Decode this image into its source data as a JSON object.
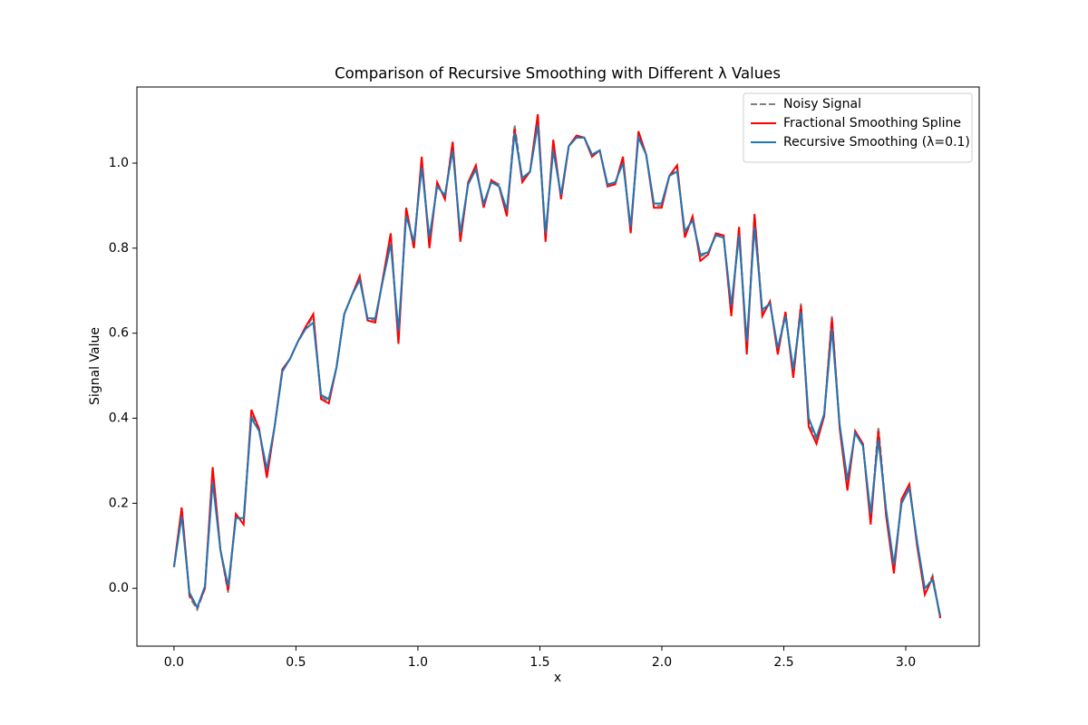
{
  "chart_data": {
    "type": "line",
    "title": "Comparison of Recursive Smoothing with Different λ Values",
    "xlabel": "x",
    "ylabel": "Signal Value",
    "x": [
      0,
      0.0317,
      0.0635,
      0.0952,
      0.1269,
      0.1587,
      0.1904,
      0.2221,
      0.2539,
      0.2856,
      0.3173,
      0.3491,
      0.3808,
      0.4125,
      0.4443,
      0.476,
      0.5077,
      0.5395,
      0.5712,
      0.6029,
      0.6347,
      0.6664,
      0.6981,
      0.7299,
      0.7616,
      0.7933,
      0.8251,
      0.8568,
      0.8885,
      0.9203,
      0.952,
      0.9837,
      1.0155,
      1.0472,
      1.0789,
      1.1107,
      1.1424,
      1.1741,
      1.2059,
      1.2376,
      1.2693,
      1.3011,
      1.3328,
      1.3645,
      1.3963,
      1.428,
      1.4597,
      1.4915,
      1.5232,
      1.5549,
      1.5867,
      1.6184,
      1.6501,
      1.6819,
      1.7136,
      1.7453,
      1.7771,
      1.8088,
      1.8405,
      1.8723,
      1.904,
      1.9357,
      1.9675,
      1.9992,
      2.0309,
      2.0627,
      2.0944,
      2.1261,
      2.1579,
      2.1896,
      2.2213,
      2.2531,
      2.2848,
      2.3165,
      2.3483,
      2.38,
      2.4117,
      2.4435,
      2.4752,
      2.5069,
      2.5387,
      2.5704,
      2.6021,
      2.6339,
      2.6656,
      2.6973,
      2.7291,
      2.7608,
      2.7925,
      2.8243,
      2.856,
      2.8877,
      2.9195,
      2.9512,
      2.9829,
      3.0147,
      3.0464,
      3.0781,
      3.1099,
      3.1416
    ],
    "series": [
      {
        "name": "Noisy Signal",
        "color": "#808080",
        "linestyle": "dashed",
        "values": [
          0.05,
          0.19,
          -0.02,
          -0.05,
          0.0,
          0.28,
          0.09,
          -0.01,
          0.17,
          0.16,
          0.41,
          0.37,
          0.27,
          0.38,
          0.51,
          0.54,
          0.58,
          0.61,
          0.64,
          0.45,
          0.44,
          0.52,
          0.645,
          0.69,
          0.73,
          0.635,
          0.63,
          0.73,
          0.83,
          0.58,
          0.89,
          0.8,
          1.01,
          0.81,
          0.95,
          0.92,
          1.05,
          0.82,
          0.95,
          0.99,
          0.9,
          0.96,
          0.95,
          0.88,
          1.09,
          0.96,
          0.98,
          1.11,
          0.82,
          1.05,
          0.92,
          1.04,
          1.06,
          1.06,
          1.02,
          1.03,
          0.95,
          0.95,
          1.01,
          0.84,
          1.07,
          1.02,
          0.9,
          0.9,
          0.97,
          0.99,
          0.83,
          0.87,
          0.78,
          0.79,
          0.83,
          0.83,
          0.65,
          0.85,
          0.56,
          0.88,
          0.65,
          0.67,
          0.56,
          0.65,
          0.5,
          0.67,
          0.39,
          0.35,
          0.41,
          0.64,
          0.38,
          0.24,
          0.37,
          0.34,
          0.16,
          0.38,
          0.18,
          0.04,
          0.21,
          0.24,
          0.11,
          -0.01,
          0.03,
          -0.07
        ]
      },
      {
        "name": "Fractional Smoothing Spline",
        "color": "#ff0000",
        "linestyle": "solid",
        "values": [
          0.05,
          0.19,
          -0.015,
          -0.045,
          0.0,
          0.285,
          0.09,
          -0.005,
          0.175,
          0.15,
          0.42,
          0.375,
          0.26,
          0.38,
          0.515,
          0.54,
          0.58,
          0.615,
          0.645,
          0.445,
          0.435,
          0.52,
          0.645,
          0.69,
          0.735,
          0.63,
          0.625,
          0.73,
          0.835,
          0.575,
          0.895,
          0.8,
          1.015,
          0.8,
          0.955,
          0.915,
          1.05,
          0.815,
          0.955,
          0.995,
          0.895,
          0.96,
          0.945,
          0.875,
          1.08,
          0.955,
          0.98,
          1.115,
          0.815,
          1.055,
          0.915,
          1.04,
          1.065,
          1.06,
          1.015,
          1.03,
          0.945,
          0.95,
          1.015,
          0.835,
          1.075,
          1.02,
          0.895,
          0.895,
          0.97,
          0.995,
          0.825,
          0.875,
          0.77,
          0.785,
          0.835,
          0.83,
          0.64,
          0.85,
          0.55,
          0.88,
          0.64,
          0.675,
          0.55,
          0.65,
          0.495,
          0.665,
          0.38,
          0.34,
          0.405,
          0.635,
          0.375,
          0.23,
          0.37,
          0.34,
          0.15,
          0.37,
          0.17,
          0.035,
          0.21,
          0.245,
          0.1,
          -0.015,
          0.025,
          -0.07
        ]
      },
      {
        "name": "Recursive Smoothing (λ=0.1)",
        "color": "#1f77b4",
        "linestyle": "solid",
        "values": [
          0.05,
          0.17,
          -0.01,
          -0.045,
          0.005,
          0.25,
          0.09,
          0.005,
          0.165,
          0.165,
          0.4,
          0.37,
          0.28,
          0.38,
          0.51,
          0.54,
          0.58,
          0.61,
          0.625,
          0.455,
          0.445,
          0.52,
          0.645,
          0.69,
          0.725,
          0.635,
          0.635,
          0.725,
          0.81,
          0.605,
          0.875,
          0.815,
          0.99,
          0.825,
          0.945,
          0.925,
          1.03,
          0.835,
          0.95,
          0.985,
          0.905,
          0.955,
          0.945,
          0.89,
          1.07,
          0.965,
          0.98,
          1.09,
          0.835,
          1.03,
          0.925,
          1.04,
          1.06,
          1.06,
          1.02,
          1.03,
          0.95,
          0.955,
          1.0,
          0.85,
          1.06,
          1.02,
          0.905,
          0.905,
          0.97,
          0.98,
          0.84,
          0.865,
          0.785,
          0.79,
          0.83,
          0.825,
          0.665,
          0.83,
          0.58,
          0.85,
          0.655,
          0.67,
          0.565,
          0.64,
          0.515,
          0.65,
          0.4,
          0.355,
          0.41,
          0.61,
          0.385,
          0.255,
          0.365,
          0.335,
          0.175,
          0.35,
          0.185,
          0.055,
          0.2,
          0.235,
          0.11,
          0.0,
          0.02,
          -0.065
        ]
      }
    ],
    "xlim": [
      -0.152,
      3.301
    ],
    "ylim": [
      -0.136,
      1.179
    ],
    "xticks": [
      {
        "value": 0,
        "label": "0.0"
      },
      {
        "value": 0.5,
        "label": "0.5"
      },
      {
        "value": 1,
        "label": "1.0"
      },
      {
        "value": 1.5,
        "label": "1.5"
      },
      {
        "value": 2,
        "label": "2.0"
      },
      {
        "value": 2.5,
        "label": "2.5"
      },
      {
        "value": 3,
        "label": "3.0"
      }
    ],
    "yticks": [
      {
        "value": 0,
        "label": "0.0"
      },
      {
        "value": 0.2,
        "label": "0.2"
      },
      {
        "value": 0.4,
        "label": "0.4"
      },
      {
        "value": 0.6,
        "label": "0.6"
      },
      {
        "value": 0.8,
        "label": "0.8"
      },
      {
        "value": 1,
        "label": "1.0"
      }
    ],
    "grid": false,
    "legend": "upper right"
  }
}
